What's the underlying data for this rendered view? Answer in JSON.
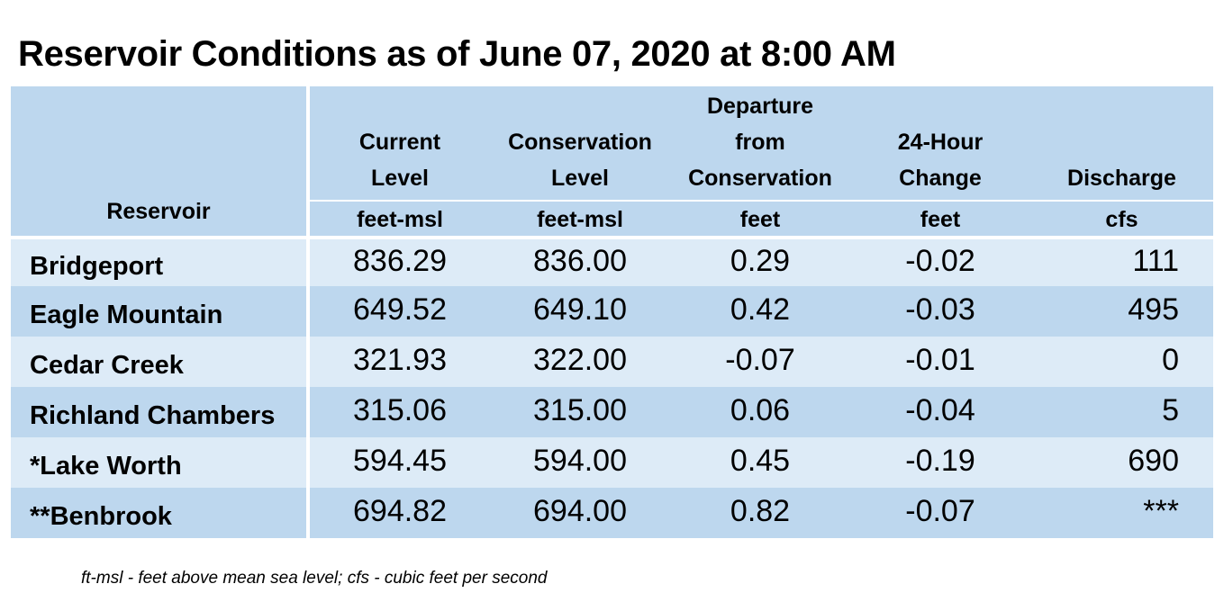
{
  "title": "Reservoir Conditions as of June 07, 2020 at 8:00 AM",
  "table": {
    "reservoir_header": "Reservoir",
    "columns": [
      {
        "lines": [
          "Current",
          "Level"
        ],
        "unit": "feet-msl"
      },
      {
        "lines": [
          "Conservation",
          "Level"
        ],
        "unit": "feet-msl"
      },
      {
        "lines": [
          "Departure",
          "from",
          "Conservation"
        ],
        "unit": "feet"
      },
      {
        "lines": [
          "24-Hour",
          "Change"
        ],
        "unit": "feet"
      },
      {
        "lines": [
          "Discharge"
        ],
        "unit": "cfs"
      }
    ],
    "rows": [
      {
        "name": "Bridgeport",
        "current": "836.29",
        "conservation": "836.00",
        "departure": "0.29",
        "change": "-0.02",
        "discharge": "111"
      },
      {
        "name": "Eagle Mountain",
        "current": "649.52",
        "conservation": "649.10",
        "departure": "0.42",
        "change": "-0.03",
        "discharge": "495"
      },
      {
        "name": "Cedar Creek",
        "current": "321.93",
        "conservation": "322.00",
        "departure": "-0.07",
        "change": "-0.01",
        "discharge": "0"
      },
      {
        "name": "Richland Chambers",
        "current": "315.06",
        "conservation": "315.00",
        "departure": "0.06",
        "change": "-0.04",
        "discharge": "5"
      },
      {
        "name": "*Lake Worth",
        "current": "594.45",
        "conservation": "594.00",
        "departure": "0.45",
        "change": "-0.19",
        "discharge": "690"
      },
      {
        "name": "**Benbrook",
        "current": "694.82",
        "conservation": "694.00",
        "departure": "0.82",
        "change": "-0.07",
        "discharge": "***"
      }
    ]
  },
  "footnote": "ft-msl - feet above mean sea level; cfs - cubic feet per second",
  "colors": {
    "header_bg": "#bdd7ee",
    "row_light": "#ddebf7",
    "row_dark": "#bdd7ee"
  }
}
